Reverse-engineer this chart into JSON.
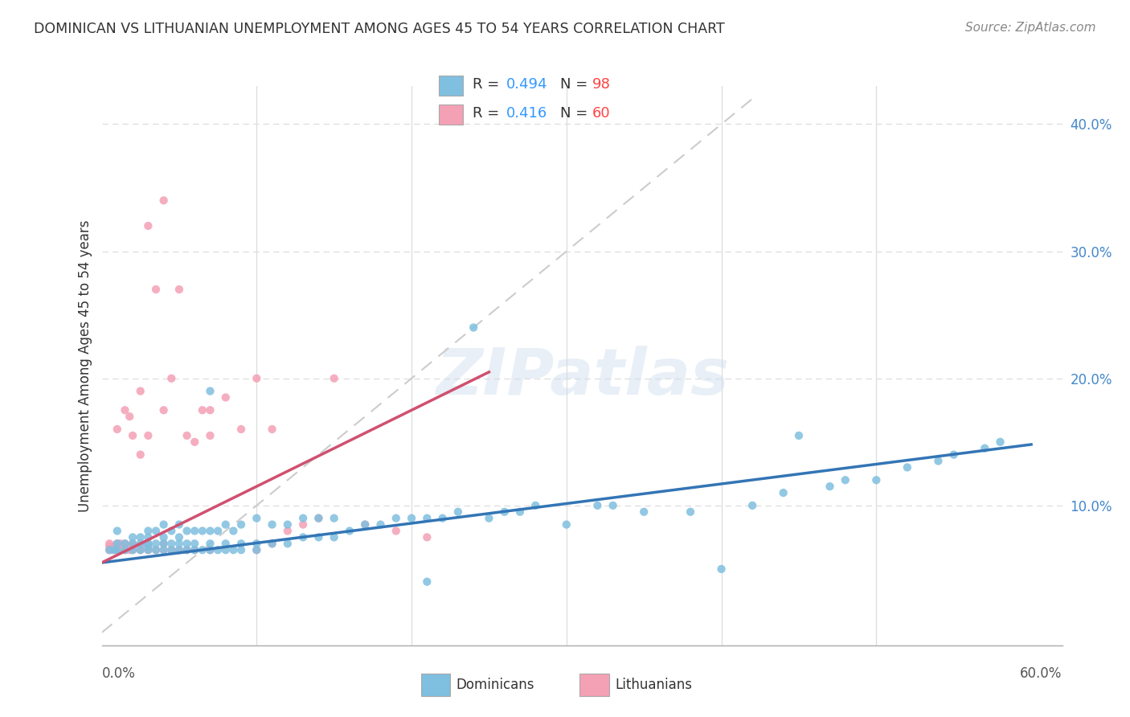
{
  "title": "DOMINICAN VS LITHUANIAN UNEMPLOYMENT AMONG AGES 45 TO 54 YEARS CORRELATION CHART",
  "source": "Source: ZipAtlas.com",
  "ylabel": "Unemployment Among Ages 45 to 54 years",
  "ytick_vals": [
    0.0,
    0.1,
    0.2,
    0.3,
    0.4
  ],
  "ytick_labels": [
    "",
    "10.0%",
    "20.0%",
    "30.0%",
    "40.0%"
  ],
  "xlim": [
    0.0,
    0.62
  ],
  "ylim": [
    -0.01,
    0.43
  ],
  "blue_color": "#7fbfdf",
  "pink_color": "#f4a0b5",
  "blue_line_color": "#3375b5",
  "pink_line_color": "#d05070",
  "diagonal_color": "#cccccc",
  "watermark": "ZIPatlas",
  "blue_scatter_x": [
    0.005,
    0.008,
    0.01,
    0.01,
    0.01,
    0.015,
    0.015,
    0.02,
    0.02,
    0.02,
    0.025,
    0.025,
    0.025,
    0.03,
    0.03,
    0.03,
    0.03,
    0.03,
    0.035,
    0.035,
    0.035,
    0.04,
    0.04,
    0.04,
    0.04,
    0.045,
    0.045,
    0.045,
    0.05,
    0.05,
    0.05,
    0.05,
    0.055,
    0.055,
    0.055,
    0.06,
    0.06,
    0.06,
    0.065,
    0.065,
    0.07,
    0.07,
    0.07,
    0.075,
    0.075,
    0.08,
    0.08,
    0.08,
    0.085,
    0.085,
    0.09,
    0.09,
    0.09,
    0.1,
    0.1,
    0.1,
    0.11,
    0.11,
    0.12,
    0.12,
    0.13,
    0.13,
    0.14,
    0.14,
    0.15,
    0.15,
    0.16,
    0.17,
    0.18,
    0.19,
    0.2,
    0.21,
    0.22,
    0.23,
    0.24,
    0.25,
    0.26,
    0.27,
    0.28,
    0.3,
    0.32,
    0.33,
    0.35,
    0.38,
    0.4,
    0.42,
    0.44,
    0.45,
    0.47,
    0.48,
    0.5,
    0.52,
    0.54,
    0.55,
    0.57,
    0.58,
    0.07,
    0.21
  ],
  "blue_scatter_y": [
    0.065,
    0.065,
    0.065,
    0.07,
    0.08,
    0.065,
    0.07,
    0.065,
    0.07,
    0.075,
    0.065,
    0.07,
    0.075,
    0.065,
    0.068,
    0.07,
    0.075,
    0.08,
    0.065,
    0.07,
    0.08,
    0.065,
    0.07,
    0.075,
    0.085,
    0.065,
    0.07,
    0.08,
    0.065,
    0.07,
    0.075,
    0.085,
    0.065,
    0.07,
    0.08,
    0.065,
    0.07,
    0.08,
    0.065,
    0.08,
    0.065,
    0.07,
    0.08,
    0.065,
    0.08,
    0.065,
    0.07,
    0.085,
    0.065,
    0.08,
    0.065,
    0.07,
    0.085,
    0.065,
    0.07,
    0.09,
    0.07,
    0.085,
    0.07,
    0.085,
    0.075,
    0.09,
    0.075,
    0.09,
    0.075,
    0.09,
    0.08,
    0.085,
    0.085,
    0.09,
    0.09,
    0.09,
    0.09,
    0.095,
    0.24,
    0.09,
    0.095,
    0.095,
    0.1,
    0.085,
    0.1,
    0.1,
    0.095,
    0.095,
    0.05,
    0.1,
    0.11,
    0.155,
    0.115,
    0.12,
    0.12,
    0.13,
    0.135,
    0.14,
    0.145,
    0.15,
    0.19,
    0.04
  ],
  "pink_scatter_x": [
    0.005,
    0.005,
    0.005,
    0.008,
    0.008,
    0.01,
    0.01,
    0.01,
    0.012,
    0.012,
    0.015,
    0.015,
    0.015,
    0.015,
    0.018,
    0.018,
    0.02,
    0.02,
    0.02,
    0.02,
    0.025,
    0.025,
    0.025,
    0.025,
    0.03,
    0.03,
    0.03,
    0.03,
    0.03,
    0.035,
    0.035,
    0.04,
    0.04,
    0.04,
    0.04,
    0.045,
    0.045,
    0.05,
    0.05,
    0.055,
    0.055,
    0.06,
    0.06,
    0.065,
    0.07,
    0.07,
    0.07,
    0.08,
    0.09,
    0.1,
    0.1,
    0.11,
    0.11,
    0.12,
    0.13,
    0.14,
    0.15,
    0.17,
    0.19,
    0.21
  ],
  "pink_scatter_y": [
    0.065,
    0.068,
    0.07,
    0.065,
    0.068,
    0.065,
    0.07,
    0.16,
    0.065,
    0.07,
    0.065,
    0.068,
    0.07,
    0.175,
    0.065,
    0.17,
    0.065,
    0.068,
    0.07,
    0.155,
    0.065,
    0.068,
    0.14,
    0.19,
    0.065,
    0.068,
    0.07,
    0.155,
    0.32,
    0.065,
    0.27,
    0.065,
    0.07,
    0.175,
    0.34,
    0.065,
    0.2,
    0.065,
    0.27,
    0.065,
    0.155,
    0.065,
    0.15,
    0.175,
    0.065,
    0.155,
    0.175,
    0.185,
    0.16,
    0.065,
    0.2,
    0.07,
    0.16,
    0.08,
    0.085,
    0.09,
    0.2,
    0.085,
    0.08,
    0.075
  ],
  "blue_trend_x": [
    0.0,
    0.6
  ],
  "blue_trend_y": [
    0.055,
    0.148
  ],
  "pink_trend_x": [
    0.0,
    0.25
  ],
  "pink_trend_y": [
    0.055,
    0.205
  ]
}
